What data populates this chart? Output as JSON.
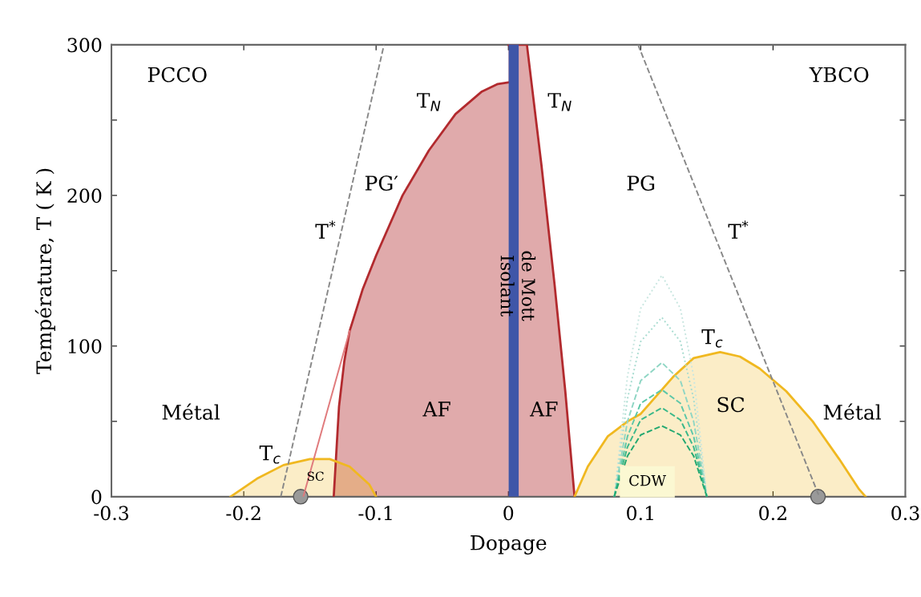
{
  "chart_data": {
    "type": "area",
    "xlabel": "Dopage",
    "ylabel": "Température, T ( K )",
    "xlim": [
      -0.3,
      0.3
    ],
    "xticks": [
      -0.3,
      -0.2,
      -0.1,
      0,
      0.1,
      0.2,
      0.3
    ],
    "ylim": [
      0,
      300
    ],
    "yticks": [
      0,
      {
        "value": 50,
        "label": null
      },
      100,
      {
        "value": 150,
        "label": null
      },
      200,
      {
        "value": 250,
        "label": null
      },
      300
    ],
    "grid": false,
    "legend": false,
    "series": [
      {
        "color": "#b22a2e",
        "x": [
          -0.132,
          -0.13,
          -0.128,
          -0.124,
          -0.12,
          -0.11,
          -0.1,
          -0.08,
          -0.06,
          -0.04,
          -0.02,
          -0.008,
          0
        ],
        "values": [
          0,
          30,
          60,
          90,
          110,
          138,
          160,
          200,
          230,
          254,
          269,
          274,
          275
        ]
      },
      {
        "color": "#b22a2e",
        "x": [
          0,
          0.014,
          0.025,
          0.035,
          0.043,
          0.05
        ],
        "values": [
          300,
          300,
          220,
          140,
          70,
          0
        ]
      },
      {
        "color": "#f0b820",
        "x": [
          -0.21,
          -0.19,
          -0.17,
          -0.15,
          -0.135,
          -0.12,
          -0.105,
          -0.1
        ],
        "values": [
          0,
          12,
          21,
          25,
          25,
          20,
          8,
          0
        ]
      },
      {
        "color": "#f0b820",
        "x": [
          0.05,
          0.06,
          0.075,
          0.09,
          0.1,
          0.11,
          0.125,
          0.14,
          0.16,
          0.175,
          0.19,
          0.21,
          0.23,
          0.25,
          0.265,
          0.27
        ],
        "values": [
          0,
          20,
          40,
          50,
          55,
          65,
          80,
          92,
          96,
          93,
          85,
          70,
          50,
          25,
          5,
          0
        ]
      },
      {
        "type": "line",
        "color": "#c8e6e0",
        "line_style": "dotted",
        "x": [
          0.08,
          0.09,
          0.1,
          0.116,
          0.13,
          0.14,
          0.15
        ],
        "values": [
          0,
          80,
          125,
          147,
          125,
          80,
          0
        ]
      },
      {
        "type": "line",
        "color": "#a8dcd0",
        "line_style": "dotted",
        "x": [
          0.08,
          0.09,
          0.1,
          0.116,
          0.13,
          0.14,
          0.15
        ],
        "values": [
          0,
          65,
          103,
          119,
          103,
          65,
          0
        ]
      },
      {
        "type": "line",
        "color": "#8fd6c4",
        "line_style": "dashed",
        "x": [
          0.08,
          0.09,
          0.1,
          0.116,
          0.13,
          0.14,
          0.15
        ],
        "values": [
          0,
          50,
          77,
          89,
          77,
          50,
          0
        ]
      },
      {
        "type": "line",
        "color": "#5cc7a8",
        "line_style": "dashed",
        "x": [
          0.08,
          0.09,
          0.1,
          0.116,
          0.13,
          0.14,
          0.15
        ],
        "values": [
          0,
          40,
          62,
          71,
          62,
          40,
          0
        ]
      },
      {
        "type": "line",
        "color": "#3ab88a",
        "line_style": "dashed",
        "x": [
          0.08,
          0.09,
          0.1,
          0.116,
          0.13,
          0.14,
          0.15
        ],
        "values": [
          0,
          33,
          51,
          59,
          51,
          33,
          0
        ]
      },
      {
        "type": "line",
        "color": "#22a870",
        "line_style": "dashed",
        "x": [
          0.08,
          0.09,
          0.1,
          0.116,
          0.13,
          0.14,
          0.15
        ],
        "values": [
          0,
          27,
          41,
          47,
          41,
          27,
          0
        ]
      },
      {
        "type": "line",
        "color": "#e07a7c",
        "line_style": "solid",
        "x": [
          -0.155,
          -0.12
        ],
        "values": [
          0,
          110
        ]
      },
      {
        "type": "line",
        "color": "#888888",
        "line_style": "dashed",
        "x": [
          -0.172,
          -0.094
        ],
        "values": [
          0,
          300
        ]
      },
      {
        "type": "line",
        "color": "#888888",
        "line_style": "dashed",
        "x": [
          0.098,
          0.235
        ],
        "values": [
          300,
          0
        ]
      },
      {
        "type": "scatter",
        "color": "#999999",
        "marker": "circle",
        "x": [
          -0.157,
          0.234
        ],
        "values": [
          0,
          0
        ]
      }
    ],
    "ref_lines": [
      {
        "axis": "x",
        "value": 0.004,
        "label": "Isolant\nde Mott",
        "color": "#3f56a8"
      }
    ],
    "annotations": [
      "PCCO",
      "YBCO",
      "T$_{N}$",
      "T$_{N}$",
      "PG′",
      "PG",
      "T$^{*}$",
      "T$^{*}$",
      "T$_{c}$",
      "T$_{c}$",
      "Métal",
      "Métal",
      "AF",
      "AF",
      "SC",
      "SC",
      "CDW"
    ]
  }
}
